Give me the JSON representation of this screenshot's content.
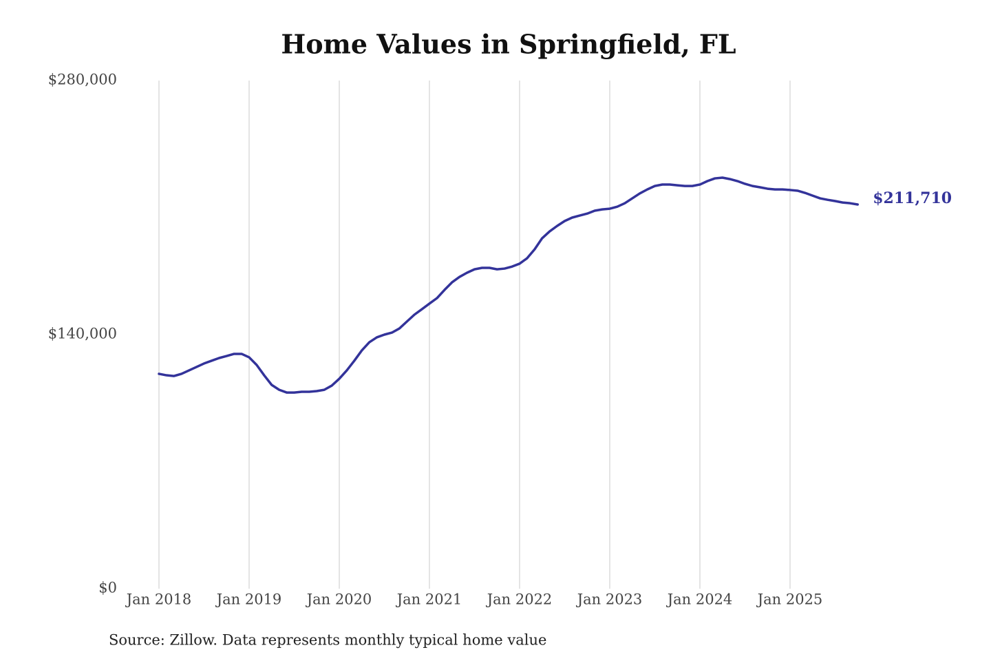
{
  "chart_data": {
    "type": "line",
    "title": "Home Values in Springfield, FL",
    "source": "Source: Zillow. Data represents monthly typical home value",
    "x": [
      "2018-01",
      "2018-02",
      "2018-03",
      "2018-04",
      "2018-05",
      "2018-06",
      "2018-07",
      "2018-08",
      "2018-09",
      "2018-10",
      "2018-11",
      "2018-12",
      "2019-01",
      "2019-02",
      "2019-03",
      "2019-04",
      "2019-05",
      "2019-06",
      "2019-07",
      "2019-08",
      "2019-09",
      "2019-10",
      "2019-11",
      "2019-12",
      "2020-01",
      "2020-02",
      "2020-03",
      "2020-04",
      "2020-05",
      "2020-06",
      "2020-07",
      "2020-08",
      "2020-09",
      "2020-10",
      "2020-11",
      "2020-12",
      "2021-01",
      "2021-02",
      "2021-03",
      "2021-04",
      "2021-05",
      "2021-06",
      "2021-07",
      "2021-08",
      "2021-09",
      "2021-10",
      "2021-11",
      "2021-12",
      "2022-01",
      "2022-02",
      "2022-03",
      "2022-04",
      "2022-05",
      "2022-06",
      "2022-07",
      "2022-08",
      "2022-09",
      "2022-10",
      "2022-11",
      "2022-12",
      "2023-01",
      "2023-02",
      "2023-03",
      "2023-04",
      "2023-05",
      "2023-06",
      "2023-07",
      "2023-08",
      "2023-09",
      "2023-10",
      "2023-11",
      "2023-12",
      "2024-01",
      "2024-02",
      "2024-03",
      "2024-04",
      "2024-05",
      "2024-06",
      "2024-07",
      "2024-08",
      "2024-09",
      "2024-10",
      "2024-11",
      "2024-12",
      "2025-01",
      "2025-02",
      "2025-03",
      "2025-04",
      "2025-05",
      "2025-06",
      "2025-07",
      "2025-08",
      "2025-09",
      "2025-10"
    ],
    "series": [
      {
        "color": "#33339a",
        "values": [
          118400,
          117600,
          117200,
          118400,
          120300,
          122200,
          124100,
          125600,
          127100,
          128200,
          129400,
          129400,
          127500,
          123300,
          117600,
          112300,
          109600,
          108100,
          108100,
          108500,
          108500,
          108900,
          109600,
          111900,
          115700,
          120300,
          125600,
          131300,
          135800,
          138500,
          140000,
          141100,
          143400,
          147200,
          151000,
          154000,
          157100,
          160100,
          164600,
          168800,
          171800,
          174100,
          176000,
          176800,
          176800,
          176000,
          176400,
          177500,
          179100,
          182100,
          187000,
          193100,
          196900,
          199900,
          202600,
          204500,
          205600,
          206700,
          208300,
          209000,
          209400,
          210500,
          212400,
          215100,
          217800,
          220000,
          221900,
          222700,
          222700,
          222300,
          221900,
          221900,
          222700,
          224600,
          226100,
          226500,
          225700,
          224600,
          223100,
          221900,
          221200,
          220400,
          220000,
          220000,
          219700,
          219300,
          218100,
          216600,
          215100,
          214300,
          213600,
          212800,
          212400,
          211710
        ],
        "value_labels": [
          null,
          null,
          null,
          null,
          null,
          null,
          null,
          null,
          null,
          null,
          null,
          null,
          null,
          null,
          null,
          null,
          null,
          null,
          null,
          null,
          null,
          null,
          null,
          null,
          null,
          null,
          null,
          null,
          null,
          null,
          null,
          null,
          null,
          null,
          null,
          null,
          null,
          null,
          null,
          null,
          null,
          null,
          null,
          null,
          null,
          null,
          null,
          null,
          null,
          null,
          null,
          null,
          null,
          null,
          null,
          null,
          null,
          null,
          null,
          null,
          null,
          null,
          null,
          null,
          null,
          null,
          null,
          null,
          null,
          null,
          null,
          null,
          null,
          null,
          null,
          null,
          null,
          null,
          null,
          null,
          null,
          null,
          null,
          null,
          null,
          null,
          null,
          null,
          null,
          null,
          null,
          null,
          null,
          "$211,710"
        ]
      }
    ],
    "ylim": [
      0,
      280000
    ],
    "yticks": [
      {
        "value": 0,
        "label": "$0"
      },
      {
        "value": 140000,
        "label": "$140,000"
      },
      {
        "value": 280000,
        "label": "$280,000"
      }
    ],
    "xticks": [
      {
        "value": "2018-01",
        "label": "Jan 2018"
      },
      {
        "value": "2019-01",
        "label": "Jan 2019"
      },
      {
        "value": "2020-01",
        "label": "Jan 2020"
      },
      {
        "value": "2021-01",
        "label": "Jan 2021"
      },
      {
        "value": "2022-01",
        "label": "Jan 2022"
      },
      {
        "value": "2023-01",
        "label": "Jan 2023"
      },
      {
        "value": "2024-01",
        "label": "Jan 2024"
      },
      {
        "value": "2025-01",
        "label": "Jan 2025"
      }
    ],
    "grid": "x"
  }
}
